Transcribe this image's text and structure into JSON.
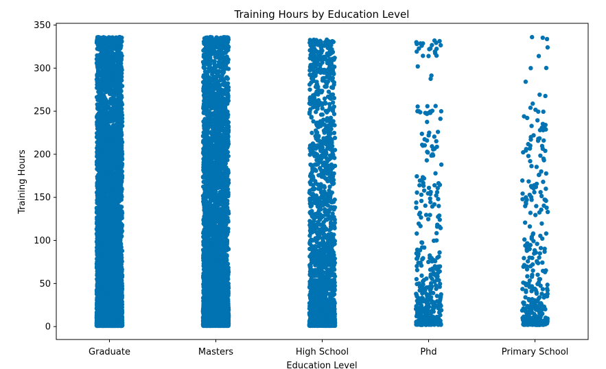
{
  "chart_data": {
    "type": "scatter",
    "subtype": "strip",
    "title": "Training Hours by Education Level",
    "xlabel": "Education Level",
    "ylabel": "Training Hours",
    "categories": [
      "Graduate",
      "Masters",
      "High School",
      "Phd",
      "Primary School"
    ],
    "ylim": [
      -15,
      352
    ],
    "yticks": [
      0,
      50,
      100,
      150,
      200,
      250,
      300,
      350
    ],
    "grid": false,
    "legend": "none",
    "point_color": "#0173b2",
    "series": [
      {
        "category": "Graduate",
        "approx_count": 11600,
        "min": 1,
        "max": 336,
        "values": [
          1,
          2,
          3,
          4,
          5,
          6,
          7,
          8,
          9,
          10,
          12,
          14,
          16,
          18,
          20,
          22,
          24,
          26,
          28,
          30,
          33,
          36,
          39,
          42,
          45,
          48,
          51,
          54,
          57,
          60,
          64,
          68,
          72,
          76,
          80,
          84,
          88,
          92,
          96,
          100,
          105,
          110,
          115,
          120,
          125,
          130,
          135,
          140,
          145,
          150,
          155,
          160,
          165,
          170,
          175,
          180,
          185,
          190,
          195,
          200,
          205,
          210,
          215,
          220,
          225,
          230,
          236,
          242,
          248,
          254,
          260,
          266,
          272,
          278,
          284,
          290,
          296,
          302,
          308,
          314,
          320,
          326,
          330,
          334,
          336
        ]
      },
      {
        "category": "Masters",
        "approx_count": 4400,
        "min": 1,
        "max": 336,
        "values": [
          1,
          2,
          3,
          4,
          6,
          8,
          10,
          12,
          15,
          18,
          21,
          24,
          28,
          32,
          36,
          40,
          45,
          50,
          55,
          60,
          66,
          72,
          78,
          84,
          90,
          96,
          102,
          108,
          114,
          120,
          126,
          132,
          138,
          144,
          150,
          156,
          162,
          168,
          174,
          180,
          186,
          192,
          198,
          204,
          210,
          216,
          222,
          228,
          234,
          240,
          246,
          252,
          258,
          264,
          270,
          278,
          286,
          294,
          302,
          308,
          316,
          322,
          328,
          332,
          336
        ]
      },
      {
        "category": "High School",
        "approx_count": 2000,
        "min": 1,
        "max": 333,
        "values": [
          1,
          2,
          4,
          6,
          8,
          10,
          13,
          16,
          19,
          22,
          26,
          30,
          34,
          38,
          42,
          46,
          50,
          55,
          60,
          65,
          70,
          75,
          80,
          85,
          90,
          95,
          100,
          106,
          112,
          118,
          124,
          130,
          136,
          142,
          148,
          154,
          160,
          166,
          172,
          180,
          188,
          196,
          204,
          210,
          216,
          226,
          236,
          246,
          256,
          264,
          272,
          284,
          292,
          298,
          304,
          310,
          316,
          320,
          326,
          330,
          333
        ]
      },
      {
        "category": "Phd",
        "approx_count": 400,
        "min": 2,
        "max": 332,
        "values": [
          2,
          4,
          6,
          8,
          10,
          12,
          15,
          18,
          21,
          24,
          27,
          30,
          34,
          38,
          42,
          46,
          50,
          54,
          58,
          62,
          66,
          70,
          75,
          80,
          85,
          92,
          100,
          108,
          116,
          124,
          132,
          140,
          148,
          156,
          164,
          172,
          188,
          200,
          210,
          216,
          222,
          226,
          248,
          250,
          256,
          302,
          314,
          322,
          326,
          330,
          332
        ]
      },
      {
        "category": "Primary School",
        "approx_count": 320,
        "min": 2,
        "max": 336,
        "values": [
          2,
          4,
          6,
          8,
          10,
          12,
          15,
          18,
          21,
          24,
          27,
          30,
          34,
          38,
          42,
          46,
          50,
          55,
          60,
          65,
          70,
          75,
          80,
          85,
          90,
          96,
          102,
          108,
          132,
          138,
          146,
          150,
          156,
          162,
          168,
          176,
          180,
          192,
          198,
          204,
          210,
          216,
          222,
          228,
          232,
          244,
          254,
          300,
          314,
          336
        ]
      }
    ]
  }
}
